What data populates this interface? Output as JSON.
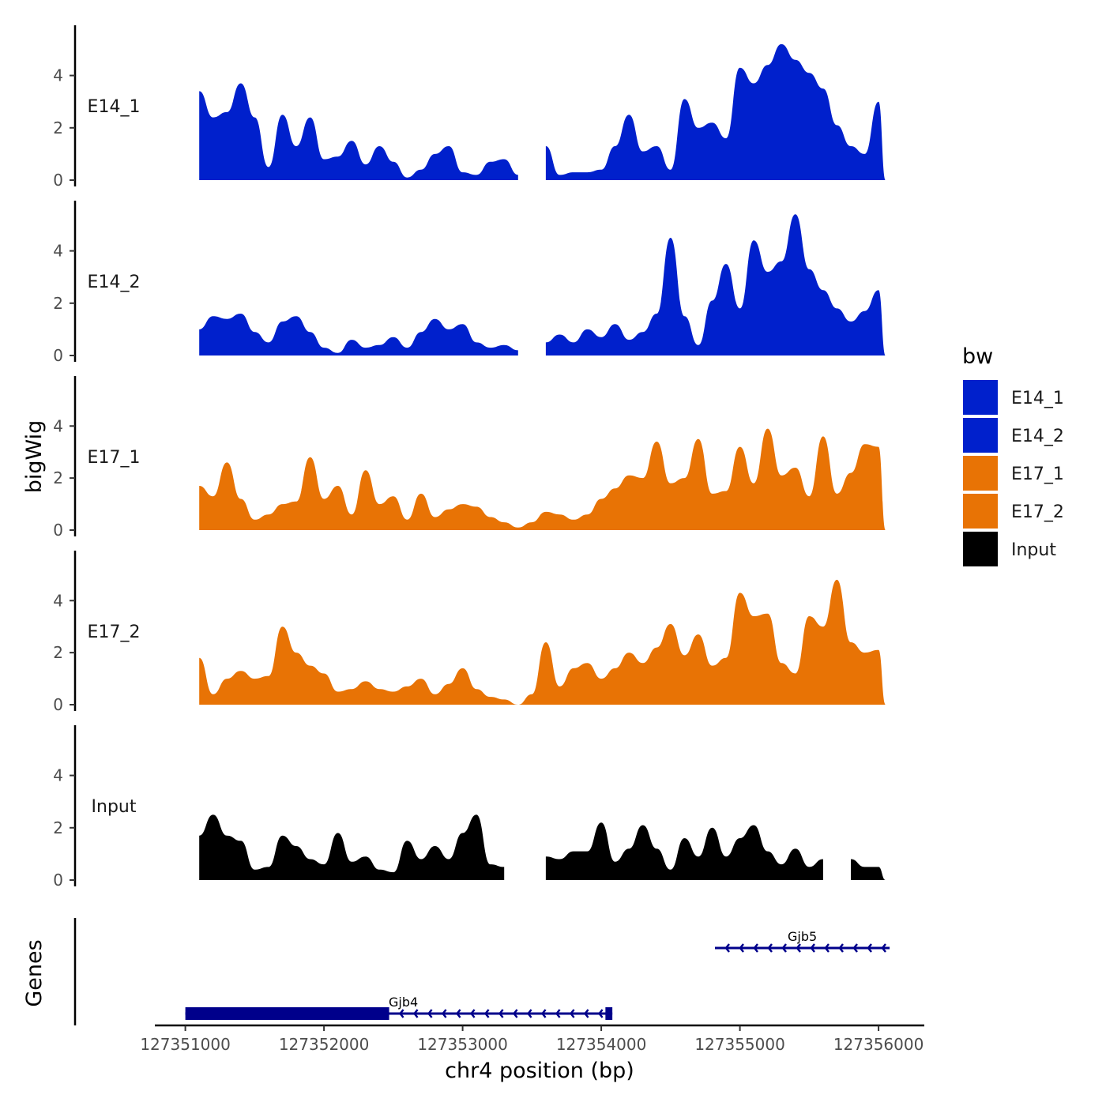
{
  "chart_data": {
    "type": "area",
    "title": "",
    "xlabel": "chr4 position (bp)",
    "ylabel": "bigWig",
    "genes_label": "Genes",
    "xlim": [
      127350780,
      127356330
    ],
    "ylim": [
      0,
      5.8
    ],
    "x_ticks": [
      127351000,
      127352000,
      127353000,
      127354000,
      127355000,
      127356000
    ],
    "x_tick_labels": [
      "127351000",
      "127352000",
      "127353000",
      "127354000",
      "127355000",
      "127356000"
    ],
    "y_ticks": [
      0,
      2,
      4
    ],
    "y_tick_labels": [
      "0",
      "2",
      "4"
    ],
    "legend": {
      "title": "bw",
      "position": "right",
      "entries": [
        {
          "label": "E14_1",
          "color": "#0020CC"
        },
        {
          "label": "E14_2",
          "color": "#0020CC"
        },
        {
          "label": "E17_1",
          "color": "#E87305"
        },
        {
          "label": "E17_2",
          "color": "#E87305"
        },
        {
          "label": "Input",
          "color": "#000000"
        }
      ]
    },
    "tracks": [
      {
        "name": "E14_1",
        "color": "#0020CC",
        "x": [
          127351100,
          127351200,
          127351300,
          127351400,
          127351500,
          127351600,
          127351700,
          127351800,
          127351900,
          127352000,
          127352100,
          127352200,
          127352300,
          127352400,
          127352500,
          127352600,
          127352700,
          127352800,
          127352900,
          127353000,
          127353100,
          127353200,
          127353300,
          127353400,
          127353500,
          127353600,
          127353700,
          127353800,
          127353900,
          127354000,
          127354100,
          127354200,
          127354300,
          127354400,
          127354500,
          127354600,
          127354700,
          127354800,
          127354900,
          127355000,
          127355100,
          127355200,
          127355300,
          127355400,
          127355500,
          127355600,
          127355700,
          127355800,
          127355900,
          127356000,
          127356050
        ],
        "y": [
          3.4,
          2.4,
          2.6,
          3.7,
          2.4,
          0.5,
          2.5,
          1.3,
          2.4,
          0.8,
          0.9,
          1.5,
          0.6,
          1.3,
          0.7,
          0.1,
          0.4,
          1.0,
          1.3,
          0.3,
          0.2,
          0.7,
          0.8,
          0.2,
          null,
          1.3,
          0.2,
          0.3,
          0.3,
          0.4,
          1.3,
          2.5,
          1.1,
          1.3,
          0.4,
          3.1,
          2.0,
          2.2,
          1.6,
          4.3,
          3.7,
          4.4,
          5.2,
          4.6,
          4.1,
          3.5,
          2.1,
          1.3,
          1.0,
          3.0,
          0
        ]
      },
      {
        "name": "E14_2",
        "color": "#0020CC",
        "x": [
          127351100,
          127351200,
          127351300,
          127351400,
          127351500,
          127351600,
          127351700,
          127351800,
          127351900,
          127352000,
          127352100,
          127352200,
          127352300,
          127352400,
          127352500,
          127352600,
          127352700,
          127352800,
          127352900,
          127353000,
          127353100,
          127353200,
          127353300,
          127353400,
          127353500,
          127353600,
          127353700,
          127353800,
          127353900,
          127354000,
          127354100,
          127354200,
          127354300,
          127354400,
          127354500,
          127354600,
          127354700,
          127354800,
          127354900,
          127355000,
          127355100,
          127355200,
          127355300,
          127355400,
          127355500,
          127355600,
          127355700,
          127355800,
          127355900,
          127356000,
          127356050
        ],
        "y": [
          1.0,
          1.5,
          1.4,
          1.6,
          0.9,
          0.5,
          1.3,
          1.5,
          0.9,
          0.3,
          0.1,
          0.6,
          0.3,
          0.4,
          0.7,
          0.3,
          0.9,
          1.4,
          1.0,
          1.2,
          0.5,
          0.3,
          0.4,
          0.2,
          null,
          0.5,
          0.8,
          0.5,
          1.0,
          0.7,
          1.2,
          0.6,
          0.9,
          1.6,
          4.5,
          1.5,
          0.4,
          2.1,
          3.5,
          1.8,
          4.4,
          3.2,
          3.6,
          5.4,
          3.3,
          2.5,
          1.8,
          1.3,
          1.7,
          2.5,
          0
        ]
      },
      {
        "name": "E17_1",
        "color": "#E87305",
        "x": [
          127351100,
          127351200,
          127351300,
          127351400,
          127351500,
          127351600,
          127351700,
          127351800,
          127351900,
          127352000,
          127352100,
          127352200,
          127352300,
          127352400,
          127352500,
          127352600,
          127352700,
          127352800,
          127352900,
          127353000,
          127353100,
          127353200,
          127353300,
          127353400,
          127353500,
          127353600,
          127353700,
          127353800,
          127353900,
          127354000,
          127354100,
          127354200,
          127354300,
          127354400,
          127354500,
          127354600,
          127354700,
          127354800,
          127354900,
          127355000,
          127355100,
          127355200,
          127355300,
          127355400,
          127355500,
          127355600,
          127355700,
          127355800,
          127355900,
          127356000,
          127356050
        ],
        "y": [
          1.7,
          1.3,
          2.6,
          1.2,
          0.4,
          0.6,
          1.0,
          1.1,
          2.8,
          1.2,
          1.7,
          0.6,
          2.3,
          1.0,
          1.3,
          0.4,
          1.4,
          0.5,
          0.8,
          1.0,
          0.9,
          0.5,
          0.3,
          0.1,
          0.3,
          0.7,
          0.6,
          0.4,
          0.6,
          1.2,
          1.6,
          2.1,
          2.0,
          3.4,
          1.8,
          2.0,
          3.5,
          1.4,
          1.5,
          3.2,
          1.8,
          3.9,
          2.1,
          2.4,
          1.3,
          3.6,
          1.4,
          2.2,
          3.3,
          3.2,
          0
        ]
      },
      {
        "name": "E17_2",
        "color": "#E87305",
        "x": [
          127351100,
          127351200,
          127351300,
          127351400,
          127351500,
          127351600,
          127351700,
          127351800,
          127351900,
          127352000,
          127352100,
          127352200,
          127352300,
          127352400,
          127352500,
          127352600,
          127352700,
          127352800,
          127352900,
          127353000,
          127353100,
          127353200,
          127353300,
          127353400,
          127353500,
          127353600,
          127353700,
          127353800,
          127353900,
          127354000,
          127354100,
          127354200,
          127354300,
          127354400,
          127354500,
          127354600,
          127354700,
          127354800,
          127354900,
          127355000,
          127355100,
          127355200,
          127355300,
          127355400,
          127355500,
          127355600,
          127355700,
          127355800,
          127355900,
          127356000,
          127356050
        ],
        "y": [
          1.8,
          0.4,
          1.0,
          1.3,
          1.0,
          1.1,
          3.0,
          2.0,
          1.5,
          1.2,
          0.5,
          0.6,
          0.9,
          0.6,
          0.5,
          0.7,
          1.0,
          0.4,
          0.8,
          1.4,
          0.6,
          0.3,
          0.2,
          0.0,
          0.4,
          2.4,
          0.7,
          1.4,
          1.6,
          1.0,
          1.4,
          2.0,
          1.6,
          2.2,
          3.1,
          1.9,
          2.7,
          1.5,
          1.8,
          4.3,
          3.4,
          3.5,
          1.6,
          1.2,
          3.4,
          3.0,
          4.8,
          2.4,
          2.0,
          2.1,
          0
        ]
      },
      {
        "name": "Input",
        "color": "#000000",
        "x": [
          127351100,
          127351200,
          127351300,
          127351400,
          127351500,
          127351600,
          127351700,
          127351800,
          127351900,
          127352000,
          127352100,
          127352200,
          127352300,
          127352400,
          127352500,
          127352600,
          127352700,
          127352800,
          127352900,
          127353000,
          127353100,
          127353200,
          127353300,
          127353400,
          127353500,
          127353600,
          127353700,
          127353800,
          127353900,
          127354000,
          127354100,
          127354200,
          127354300,
          127354400,
          127354500,
          127354600,
          127354700,
          127354800,
          127354900,
          127355000,
          127355100,
          127355200,
          127355300,
          127355400,
          127355500,
          127355600,
          127355700,
          127355800,
          127355900,
          127356000,
          127356050
        ],
        "y": [
          1.7,
          2.5,
          1.7,
          1.5,
          0.4,
          0.5,
          1.7,
          1.3,
          0.8,
          0.6,
          1.8,
          0.7,
          0.9,
          0.4,
          0.3,
          1.5,
          0.8,
          1.3,
          0.8,
          1.8,
          2.5,
          0.6,
          0.5,
          null,
          null,
          0.9,
          0.8,
          1.1,
          1.1,
          2.2,
          0.7,
          1.2,
          2.1,
          1.2,
          0.4,
          1.6,
          0.9,
          2.0,
          0.9,
          1.6,
          2.1,
          1.1,
          0.6,
          1.2,
          0.5,
          0.8,
          null,
          0.8,
          0.5,
          0.5,
          0
        ]
      }
    ],
    "genes": [
      {
        "name": "Gjb4",
        "start": 127351000,
        "end": 127354080,
        "strand": "-",
        "exons": [
          [
            127351000,
            127352470
          ],
          [
            127354030,
            127354080
          ]
        ],
        "thick_exon_index": 0
      },
      {
        "name": "Gjb5",
        "start": 127354820,
        "end": 127356080,
        "strand": "-",
        "exons": []
      }
    ]
  }
}
